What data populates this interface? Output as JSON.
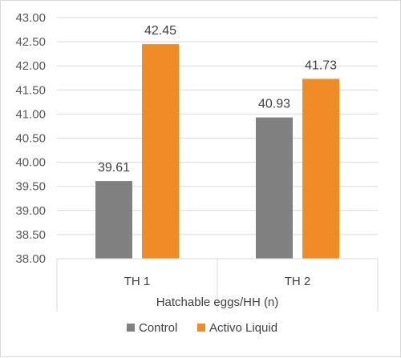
{
  "chart_data": {
    "type": "bar",
    "title": "",
    "xlabel": "Hatchable eggs/HH (n)",
    "ylabel": "",
    "categories": [
      "TH 1",
      "TH 2"
    ],
    "series": [
      {
        "name": "Control",
        "values": [
          39.61,
          40.93
        ],
        "color": "#808080"
      },
      {
        "name": "Activo Liquid",
        "values": [
          42.45,
          41.73
        ],
        "color": "#f08c26"
      }
    ],
    "ylim": [
      38.0,
      43.0
    ],
    "yticks": [
      "38.00",
      "38.50",
      "39.00",
      "39.50",
      "40.00",
      "40.50",
      "41.00",
      "41.50",
      "42.00",
      "42.50",
      "43.00"
    ],
    "data_labels": [
      [
        "39.61",
        "40.93"
      ],
      [
        "42.45",
        "41.73"
      ]
    ],
    "grid": true,
    "legend_position": "bottom"
  }
}
